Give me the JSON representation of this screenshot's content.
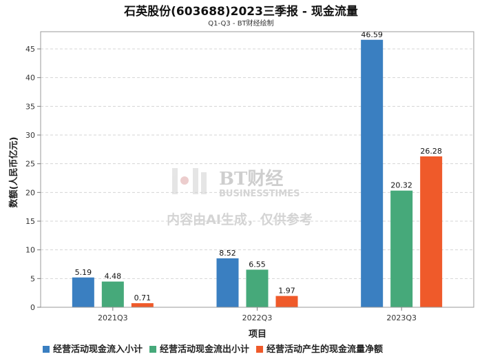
{
  "chart_data": {
    "type": "bar",
    "title": "石英股份(603688)2023三季报 - 现金流量",
    "subtitle": "Q1-Q3 - BT财经绘制",
    "xlabel": "项目",
    "ylabel": "数额(人民币亿元)",
    "categories": [
      "2021Q3",
      "2022Q3",
      "2023Q3"
    ],
    "ylim": [
      0,
      48
    ],
    "yticks": [
      0,
      5,
      10,
      15,
      20,
      25,
      30,
      35,
      40,
      45
    ],
    "grid": true,
    "legend_position": "bottom",
    "series": [
      {
        "name": "经营活动现金流入小计",
        "color": "#3a7fc1",
        "values": [
          5.19,
          8.52,
          46.59
        ]
      },
      {
        "name": "经营活动现金流出小计",
        "color": "#46a97a",
        "values": [
          4.48,
          6.55,
          20.32
        ]
      },
      {
        "name": "经营活动产生的现金流量净额",
        "color": "#ef5a2a",
        "values": [
          0.71,
          1.97,
          26.28
        ]
      }
    ]
  },
  "watermark": {
    "brand": "BT财经",
    "brand_en": "BUSINESSTIMES",
    "notice": "内容由AI生成，仅供参考"
  }
}
